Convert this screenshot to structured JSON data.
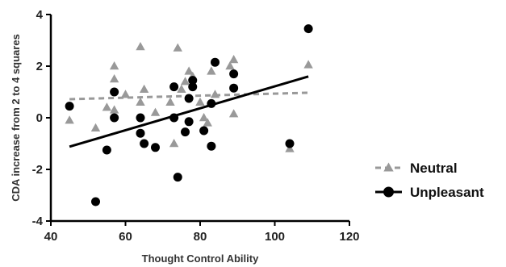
{
  "chart_data": {
    "type": "scatter",
    "xlabel": "Thought Control Ability",
    "ylabel": "CDA increase from 2 to 4 squares",
    "xlim": [
      40,
      120
    ],
    "ylim": [
      -4,
      4
    ],
    "xticks": [
      40,
      60,
      80,
      100,
      120
    ],
    "yticks": [
      -4,
      -2,
      0,
      2,
      4
    ],
    "grid": false,
    "legend_position": "right",
    "series": [
      {
        "name": "Neutral",
        "marker": "triangle",
        "color": "#999999",
        "points": [
          [
            45,
            -0.1
          ],
          [
            52,
            -0.4
          ],
          [
            55,
            0.4
          ],
          [
            57,
            2.0
          ],
          [
            57,
            1.5
          ],
          [
            57,
            0.3
          ],
          [
            60,
            0.9
          ],
          [
            64,
            2.75
          ],
          [
            64,
            0.6
          ],
          [
            65,
            1.1
          ],
          [
            68,
            0.2
          ],
          [
            72,
            0.6
          ],
          [
            73,
            -1.0
          ],
          [
            74,
            2.7
          ],
          [
            75,
            1.1
          ],
          [
            76,
            1.4
          ],
          [
            77,
            1.8
          ],
          [
            78,
            1.6
          ],
          [
            80,
            0.6
          ],
          [
            81,
            0.0
          ],
          [
            82,
            -0.2
          ],
          [
            83,
            1.8
          ],
          [
            84,
            0.9
          ],
          [
            88,
            2.0
          ],
          [
            89,
            2.25
          ],
          [
            89,
            0.15
          ],
          [
            104,
            -1.2
          ],
          [
            109,
            2.05
          ]
        ],
        "fit": {
          "x": [
            45,
            109
          ],
          "y": [
            0.72,
            0.97
          ],
          "style": "dashed"
        }
      },
      {
        "name": "Unpleasant",
        "marker": "circle",
        "color": "#000000",
        "points": [
          [
            45,
            0.45
          ],
          [
            52,
            -3.25
          ],
          [
            55,
            -1.25
          ],
          [
            57,
            1.0
          ],
          [
            57,
            0.0
          ],
          [
            64,
            0.0
          ],
          [
            64,
            -0.6
          ],
          [
            65,
            -1.0
          ],
          [
            68,
            -1.15
          ],
          [
            73,
            1.2
          ],
          [
            73,
            0.0
          ],
          [
            74,
            -2.3
          ],
          [
            76,
            -0.55
          ],
          [
            77,
            -0.15
          ],
          [
            77,
            0.75
          ],
          [
            78,
            1.45
          ],
          [
            78,
            1.2
          ],
          [
            81,
            -0.5
          ],
          [
            83,
            -1.1
          ],
          [
            83,
            0.55
          ],
          [
            84,
            2.15
          ],
          [
            89,
            1.7
          ],
          [
            89,
            1.15
          ],
          [
            104,
            -1.0
          ],
          [
            109,
            3.45
          ]
        ],
        "fit": {
          "x": [
            45,
            109
          ],
          "y": [
            -1.12,
            1.6
          ],
          "style": "solid"
        }
      }
    ]
  }
}
